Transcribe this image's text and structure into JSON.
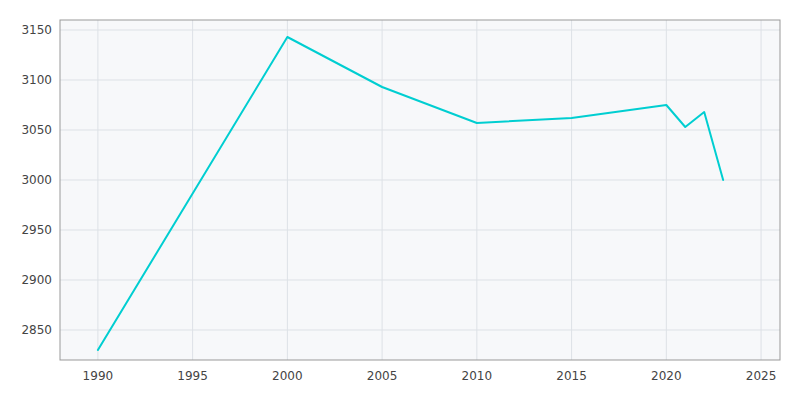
{
  "chart_data": {
    "type": "line",
    "x": [
      1990,
      2000,
      2005,
      2010,
      2015,
      2020,
      2021,
      2022,
      2023
    ],
    "values": [
      2830,
      3143,
      3093,
      3057,
      3062,
      3075,
      3053,
      3068,
      3000
    ],
    "color": "#00CED1",
    "xlim": [
      1988,
      2026
    ],
    "ylim": [
      2820,
      3160
    ],
    "xticks": [
      1990,
      1995,
      2000,
      2005,
      2010,
      2015,
      2020,
      2025
    ],
    "yticks": [
      2850,
      2900,
      2950,
      3000,
      3050,
      3100,
      3150
    ],
    "grid": true
  }
}
